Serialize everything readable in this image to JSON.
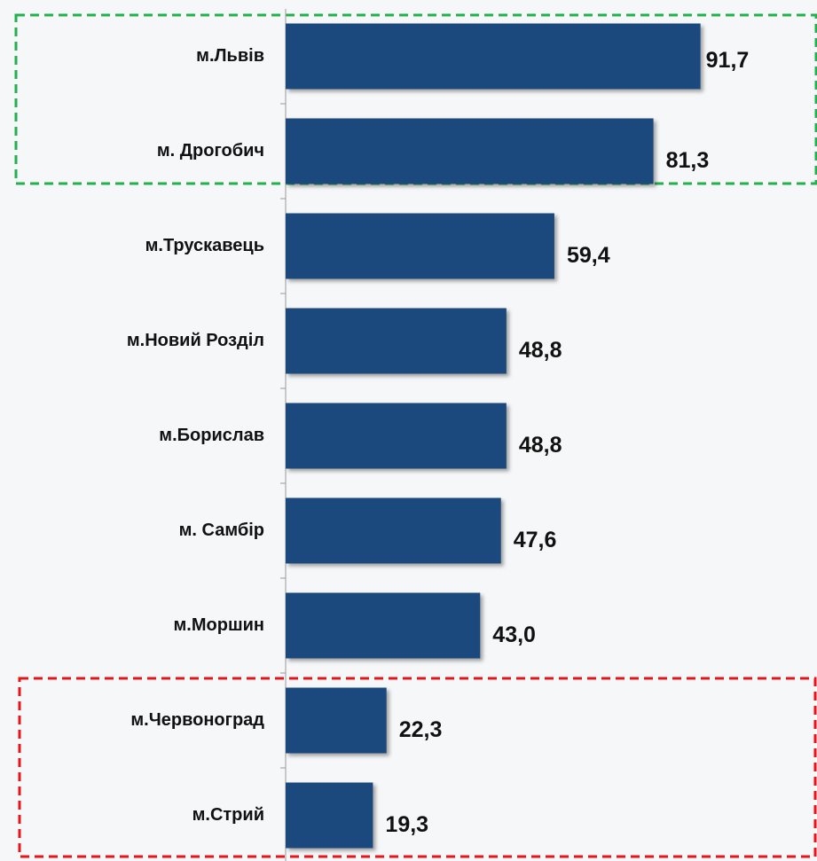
{
  "chart_data": {
    "type": "bar",
    "orientation": "horizontal",
    "categories": [
      "м.Львів",
      "м. Дрогобич",
      "м.Трускавець",
      "м.Новий Розділ",
      "м.Борислав",
      "м. Самбір",
      "м.Моршин",
      "м.Червоноград",
      "м.Стрий"
    ],
    "values": [
      91.7,
      81.3,
      59.4,
      48.8,
      48.8,
      47.6,
      43.0,
      22.3,
      19.3
    ],
    "value_labels": [
      "91,7",
      "81,3",
      "59,4",
      "48,8",
      "48,8",
      "47,6",
      "43,0",
      "22,3",
      "19,3"
    ],
    "color": "#1f497d",
    "xlim": [
      0,
      100
    ]
  }
}
